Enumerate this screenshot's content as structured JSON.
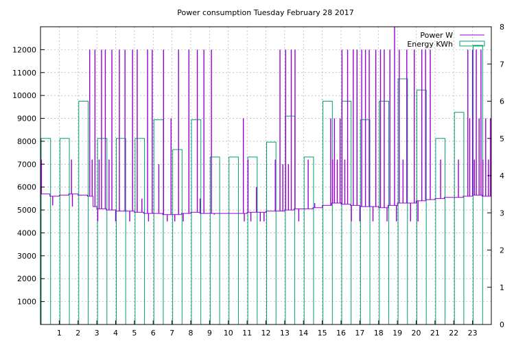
{
  "chart_data": {
    "type": "line",
    "title": "Power consumption Tuesday February 28 2017",
    "x_ticks": [
      "1",
      "2",
      "3",
      "4",
      "5",
      "6",
      "7",
      "8",
      "9",
      "10",
      "11",
      "12",
      "13",
      "14",
      "15",
      "16",
      "17",
      "18",
      "19",
      "20",
      "21",
      "22",
      "23"
    ],
    "xlim": [
      0,
      24
    ],
    "y1_ticks": [
      "1000",
      "2000",
      "3000",
      "4000",
      "5000",
      "6000",
      "7000",
      "8000",
      "9000",
      "10000",
      "11000",
      "12000"
    ],
    "y1lim": [
      0,
      13000
    ],
    "y2_ticks": [
      "0",
      "1",
      "2",
      "3",
      "4",
      "5",
      "6",
      "7",
      "8"
    ],
    "y2lim": [
      0,
      8
    ],
    "grid": true,
    "legend_position": "top-right",
    "series": [
      {
        "name": "Power W",
        "color": "#9400d3",
        "axis": "y1",
        "baseline": [
          [
            0,
            5700
          ],
          [
            0.5,
            5600
          ],
          [
            1,
            5650
          ],
          [
            1.5,
            5700
          ],
          [
            2,
            5650
          ],
          [
            2.5,
            5600
          ],
          [
            2.8,
            5150
          ],
          [
            3,
            5050
          ],
          [
            3.5,
            5000
          ],
          [
            4,
            4950
          ],
          [
            4.5,
            4950
          ],
          [
            5,
            4900
          ],
          [
            5.5,
            4850
          ],
          [
            6,
            4850
          ],
          [
            6.5,
            4800
          ],
          [
            7,
            4800
          ],
          [
            7.5,
            4850
          ],
          [
            8,
            4900
          ],
          [
            8.5,
            4850
          ],
          [
            9,
            4850
          ],
          [
            9.5,
            4850
          ],
          [
            10,
            4850
          ],
          [
            10.5,
            4850
          ],
          [
            11,
            4900
          ],
          [
            11.5,
            4900
          ],
          [
            12,
            4950
          ],
          [
            12.5,
            4950
          ],
          [
            13,
            5000
          ],
          [
            13.5,
            5050
          ],
          [
            14,
            5050
          ],
          [
            14.5,
            5100
          ],
          [
            15,
            5200
          ],
          [
            15.5,
            5300
          ],
          [
            16,
            5250
          ],
          [
            16.5,
            5200
          ],
          [
            17,
            5150
          ],
          [
            17.5,
            5150
          ],
          [
            18,
            5100
          ],
          [
            18.5,
            5200
          ],
          [
            19,
            5300
          ],
          [
            19.5,
            5300
          ],
          [
            20,
            5400
          ],
          [
            20.5,
            5450
          ],
          [
            21,
            5500
          ],
          [
            21.5,
            5550
          ],
          [
            22,
            5550
          ],
          [
            22.5,
            5600
          ],
          [
            23,
            5650
          ],
          [
            23.5,
            5600
          ],
          [
            24,
            5550
          ]
        ],
        "spikes": [
          [
            0.05,
            7200
          ],
          [
            0.65,
            5200
          ],
          [
            1.65,
            7200
          ],
          [
            1.7,
            5150
          ],
          [
            2.62,
            12000
          ],
          [
            2.75,
            7200
          ],
          [
            2.9,
            12000
          ],
          [
            3.05,
            4500
          ],
          [
            3.12,
            7200
          ],
          [
            3.25,
            12000
          ],
          [
            3.45,
            12000
          ],
          [
            3.65,
            7200
          ],
          [
            3.8,
            12000
          ],
          [
            4.0,
            4500
          ],
          [
            4.2,
            12000
          ],
          [
            4.5,
            12000
          ],
          [
            4.75,
            4500
          ],
          [
            4.9,
            12000
          ],
          [
            5.15,
            12000
          ],
          [
            5.4,
            5500
          ],
          [
            5.7,
            12000
          ],
          [
            5.75,
            4500
          ],
          [
            5.95,
            12000
          ],
          [
            6.3,
            7000
          ],
          [
            6.55,
            12000
          ],
          [
            6.75,
            4500
          ],
          [
            6.95,
            9000
          ],
          [
            7.15,
            4500
          ],
          [
            7.35,
            12000
          ],
          [
            7.6,
            4500
          ],
          [
            7.9,
            12000
          ],
          [
            8.35,
            12000
          ],
          [
            8.5,
            5500
          ],
          [
            8.7,
            12000
          ],
          [
            9.1,
            12000
          ],
          [
            9.25,
            4800
          ],
          [
            10.8,
            9000
          ],
          [
            10.85,
            4500
          ],
          [
            11.05,
            7200
          ],
          [
            11.2,
            4500
          ],
          [
            11.5,
            6000
          ],
          [
            11.7,
            4500
          ],
          [
            11.9,
            4500
          ],
          [
            12.5,
            7200
          ],
          [
            12.75,
            12000
          ],
          [
            12.9,
            7000
          ],
          [
            13.05,
            12000
          ],
          [
            13.2,
            7000
          ],
          [
            13.35,
            12000
          ],
          [
            13.55,
            12000
          ],
          [
            13.75,
            4500
          ],
          [
            14.25,
            7200
          ],
          [
            14.6,
            5300
          ],
          [
            15.45,
            9000
          ],
          [
            15.55,
            7200
          ],
          [
            15.65,
            9000
          ],
          [
            15.8,
            7200
          ],
          [
            15.95,
            9000
          ],
          [
            16.05,
            12000
          ],
          [
            16.2,
            7200
          ],
          [
            16.35,
            12000
          ],
          [
            16.55,
            4500
          ],
          [
            16.65,
            12000
          ],
          [
            16.85,
            12000
          ],
          [
            17.0,
            4500
          ],
          [
            17.1,
            12000
          ],
          [
            17.3,
            12000
          ],
          [
            17.5,
            12000
          ],
          [
            17.7,
            4500
          ],
          [
            17.85,
            12000
          ],
          [
            18.1,
            12000
          ],
          [
            18.3,
            12000
          ],
          [
            18.45,
            4500
          ],
          [
            18.6,
            12000
          ],
          [
            18.85,
            13000
          ],
          [
            18.95,
            4500
          ],
          [
            19.1,
            12000
          ],
          [
            19.3,
            7200
          ],
          [
            19.5,
            12000
          ],
          [
            19.7,
            4500
          ],
          [
            19.9,
            12000
          ],
          [
            20.1,
            4500
          ],
          [
            20.3,
            12000
          ],
          [
            20.5,
            12000
          ],
          [
            20.75,
            12000
          ],
          [
            21.3,
            7200
          ],
          [
            22.25,
            7200
          ],
          [
            22.75,
            12000
          ],
          [
            22.85,
            9000
          ],
          [
            23.0,
            12000
          ],
          [
            23.1,
            7200
          ],
          [
            23.2,
            12000
          ],
          [
            23.35,
            9000
          ],
          [
            23.45,
            12000
          ],
          [
            23.55,
            7200
          ],
          [
            23.7,
            9000
          ],
          [
            23.85,
            7200
          ],
          [
            23.95,
            9000
          ]
        ]
      },
      {
        "name": "Energy KWh",
        "color": "#009e73",
        "axis": "y2",
        "style": "boxes",
        "x": [
          0,
          1,
          2,
          3,
          4,
          5,
          6,
          7,
          8,
          9,
          10,
          11,
          12,
          13,
          14,
          15,
          16,
          17,
          18,
          19,
          20,
          21,
          22,
          23
        ],
        "values": [
          5.0,
          5.0,
          6.0,
          5.0,
          5.0,
          5.0,
          5.5,
          4.7,
          5.5,
          4.5,
          4.5,
          4.5,
          4.9,
          5.6,
          4.5,
          6.0,
          6.0,
          5.5,
          6.0,
          6.6,
          6.3,
          5.0,
          5.7,
          7.5
        ]
      }
    ]
  }
}
